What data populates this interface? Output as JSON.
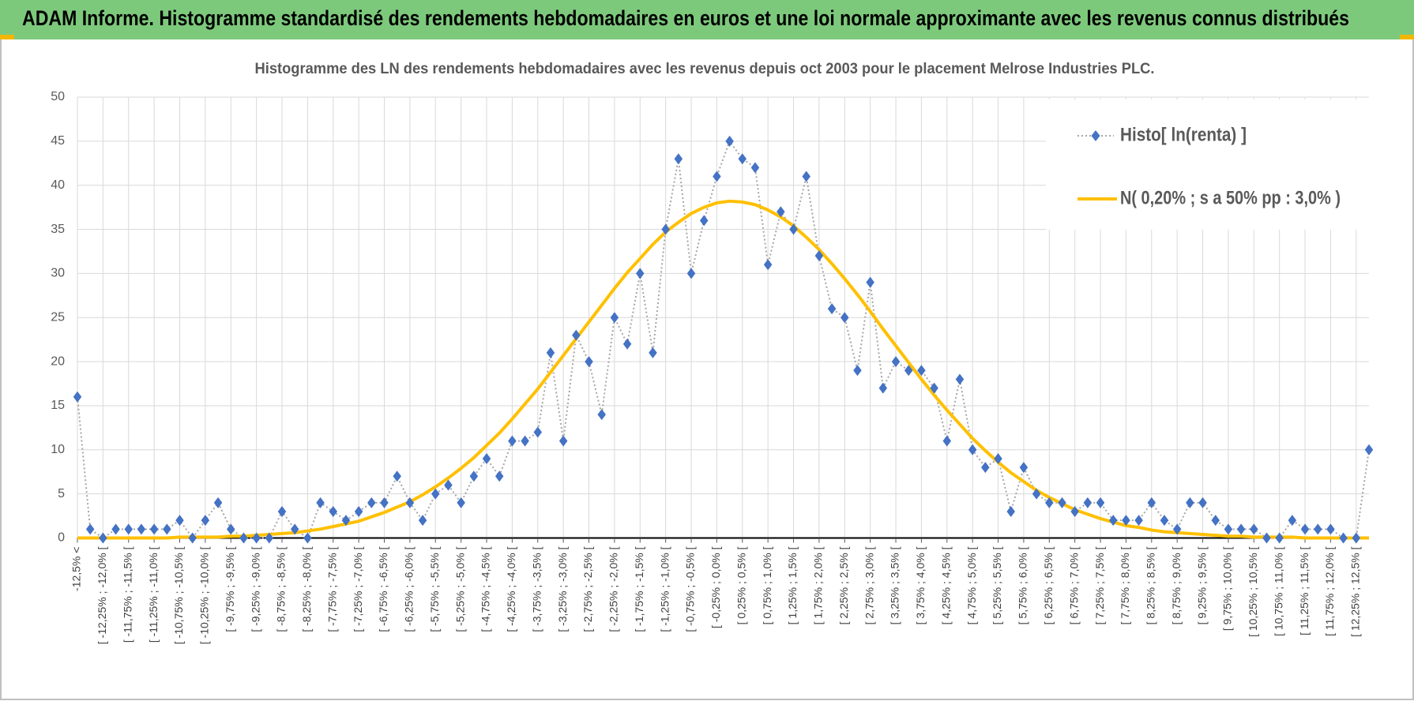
{
  "header": {
    "title": "ADAM Informe. Histogramme standardisé des rendements hebdomadaires en euros et une loi normale approximante avec les revenus connus distribués"
  },
  "chart_data": {
    "type": "line",
    "title": "Histogramme  des LN des rendements hebdomadaires avec les revenus depuis oct 2003 pour le placement Melrose Industries PLC.",
    "categories": [
      "-12,5% <",
      null,
      "[ -12,25% ; -12,0% [",
      null,
      "[ -11,75% ; -11,5% [",
      null,
      "[ -11,25% ; -11,0% [",
      null,
      "[ -10,75% ; -10,5% [",
      null,
      "[ -10,25% ; -10,0% [",
      null,
      "[ -9,75% ; -9,5% [",
      null,
      "[ -9,25% ; -9,0% [",
      null,
      "[ -8,75% ; -8,5% [",
      null,
      "[ -8,25% ; -8,0% [",
      null,
      "[ -7,75% ; -7,5% [",
      null,
      "[ -7,25% ; -7,0% [",
      null,
      "[ -6,75% ; -6,5% [",
      null,
      "[ -6,25% ; -6,0% [",
      null,
      "[ -5,75% ; -5,5% [",
      null,
      "[ -5,25% ; -5,0% [",
      null,
      "[ -4,75% ; -4,5% [",
      null,
      "[ -4,25% ; -4,0% [",
      null,
      "[ -3,75% ; -3,5% [",
      null,
      "[ -3,25% ; -3,0% [",
      null,
      "[ -2,75% ; -2,5% [",
      null,
      "[ -2,25% ; -2,0% [",
      null,
      "[ -1,75% ; -1,5% [",
      null,
      "[ -1,25% ; -1,0% [",
      null,
      "[ -0,75% ; -0,5% [",
      null,
      "[ -0,25% ; 0,0% [",
      null,
      "[ 0,25% ; 0,5% [",
      null,
      "[ 0,75% ; 1,0% [",
      null,
      "[ 1,25% ; 1,5% [",
      null,
      "[ 1,75% ; 2,0% [",
      null,
      "[ 2,25% ; 2,5% [",
      null,
      "[ 2,75% ; 3,0% [",
      null,
      "[ 3,25% ; 3,5% [",
      null,
      "[ 3,75% ; 4,0% [",
      null,
      "[ 4,25% ; 4,5% [",
      null,
      "[ 4,75% ; 5,0% [",
      null,
      "[ 5,25% ; 5,5% [",
      null,
      "[ 5,75% ; 6,0% [",
      null,
      "[ 6,25% ; 6,5% [",
      null,
      "[ 6,75% ; 7,0% [",
      null,
      "[ 7,25% ; 7,5% [",
      null,
      "[ 7,75% ; 8,0% [",
      null,
      "[ 8,25% ; 8,5% [",
      null,
      "[ 8,75% ; 9,0% [",
      null,
      "[ 9,25% ; 9,5% [",
      null,
      "[ 9,75% ; 10,0% [",
      null,
      "[ 10,25% ; 10,5% [",
      null,
      "[ 10,75% ; 11,0% [",
      null,
      "[ 11,25% ; 11,5% [",
      null,
      "[ 11,75% ; 12,0% [",
      null,
      "[ 12,25% ; 12,5% [",
      null
    ],
    "series": [
      {
        "name": "Histo[ ln(renta) ]",
        "color": "#4472c4",
        "line_color": "#a6a6a6",
        "values": [
          16,
          1,
          0,
          1,
          1,
          1,
          1,
          1,
          2,
          0,
          2,
          4,
          1,
          0,
          0,
          0,
          3,
          1,
          0,
          4,
          3,
          2,
          3,
          4,
          4,
          7,
          4,
          2,
          5,
          6,
          4,
          7,
          9,
          7,
          11,
          11,
          12,
          21,
          11,
          23,
          20,
          14,
          25,
          22,
          30,
          21,
          35,
          43,
          30,
          36,
          41,
          45,
          43,
          42,
          31,
          37,
          35,
          41,
          32,
          26,
          25,
          19,
          29,
          17,
          20,
          19,
          19,
          17,
          11,
          18,
          10,
          8,
          9,
          3,
          8,
          5,
          4,
          4,
          3,
          4,
          4,
          2,
          2,
          2,
          4,
          2,
          1,
          4,
          4,
          2,
          1,
          1,
          1,
          0,
          0,
          2,
          1,
          1,
          1,
          0,
          0,
          10
        ]
      },
      {
        "name": "N( 0,20% ; s a 50% pp : 3,0% )",
        "color": "#ffc000",
        "values": [
          0,
          0,
          0,
          0,
          0,
          0,
          0,
          0,
          0.1,
          0.1,
          0.1,
          0.1,
          0.2,
          0.2,
          0.3,
          0.4,
          0.5,
          0.6,
          0.8,
          1.0,
          1.3,
          1.6,
          1.9,
          2.4,
          2.9,
          3.5,
          4.1,
          4.9,
          5.8,
          6.8,
          7.9,
          9.1,
          10.5,
          11.9,
          13.5,
          15.2,
          16.9,
          18.8,
          20.7,
          22.6,
          24.5,
          26.4,
          28.3,
          30.1,
          31.7,
          33.3,
          34.7,
          35.8,
          36.8,
          37.5,
          38.0,
          38.2,
          38.1,
          37.8,
          37.2,
          36.4,
          35.4,
          34.1,
          32.7,
          31.1,
          29.4,
          27.6,
          25.7,
          23.7,
          21.8,
          19.9,
          18.0,
          16.2,
          14.5,
          12.9,
          11.3,
          9.9,
          8.6,
          7.4,
          6.4,
          5.4,
          4.6,
          3.9,
          3.2,
          2.7,
          2.2,
          1.8,
          1.4,
          1.2,
          0.9,
          0.7,
          0.6,
          0.5,
          0.4,
          0.3,
          0.2,
          0.2,
          0.1,
          0.1,
          0.1,
          0.1,
          0,
          0,
          0,
          0,
          0,
          0
        ]
      }
    ],
    "ylim": [
      0,
      50
    ],
    "yticks": [
      0,
      5,
      10,
      15,
      20,
      25,
      30,
      35,
      40,
      45,
      50
    ],
    "grid": true,
    "legend": "top-right"
  }
}
